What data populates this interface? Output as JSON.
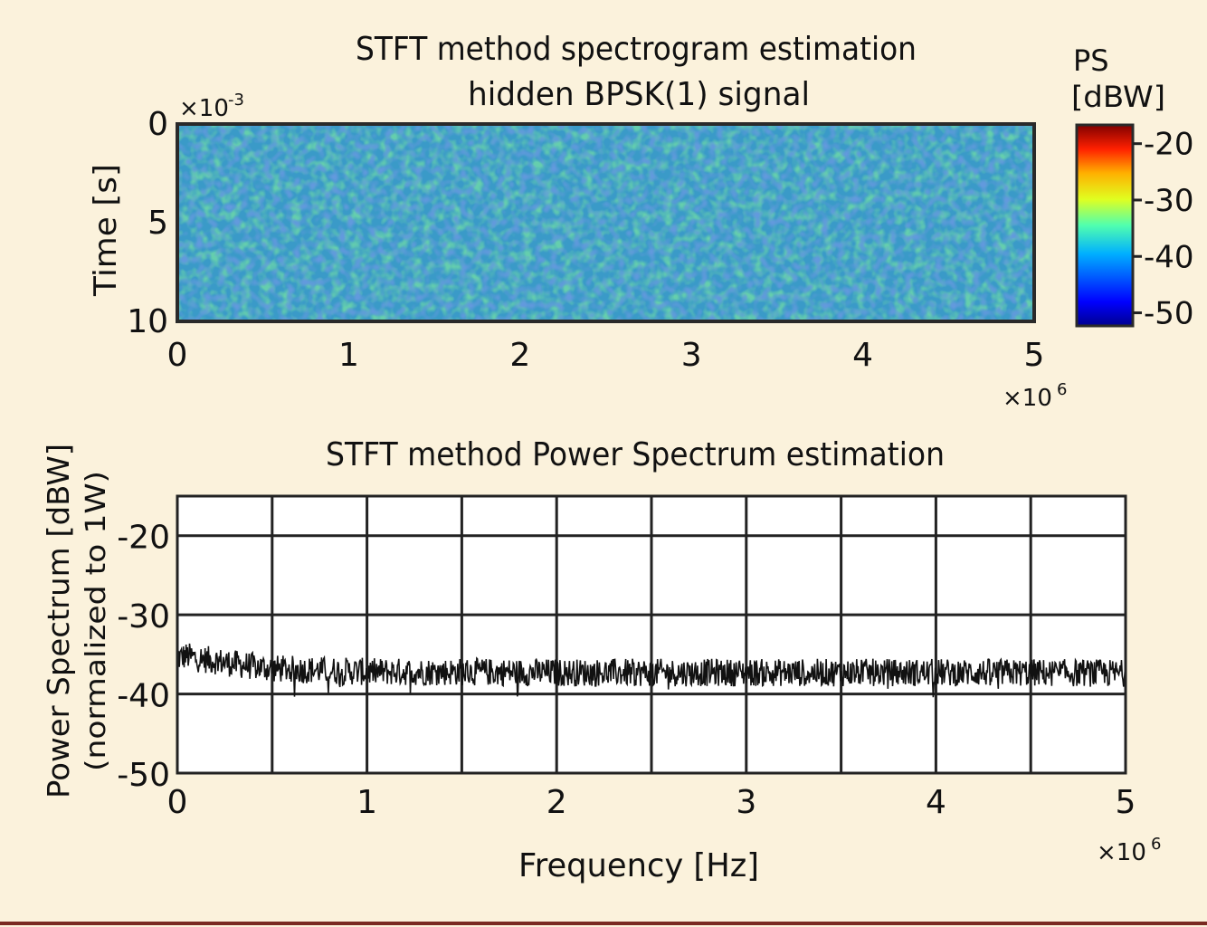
{
  "colors": {
    "background": "#fbf2dc",
    "spectrogram_base": "#3a9ac8",
    "spectrum_line": "#111111",
    "grid": "#222222",
    "panel": "#ffffff"
  },
  "chart_data": [
    {
      "type": "heatmap",
      "title": "STFT method spectrogram estimation",
      "subtitle": "hidden BPSK(1) signal",
      "xlabel": "",
      "ylabel": "Time [s]",
      "xlim": [
        0,
        5
      ],
      "ylim": [
        0,
        10
      ],
      "x_multiplier": "×10",
      "x_multiplier_exp": "6",
      "y_multiplier": "×10",
      "y_multiplier_exp": "-3",
      "xticks": [
        "0",
        "1",
        "2",
        "3",
        "4",
        "5"
      ],
      "yticks": [
        "0",
        "5",
        "10"
      ],
      "colorbar": {
        "title": "PS",
        "unit": "[dBW]",
        "ticks": [
          "-20",
          "-30",
          "-40",
          "-50"
        ],
        "range": [
          -52,
          -17
        ],
        "colormap": "jet"
      },
      "value_range_dBW": [
        -45,
        -35
      ],
      "typical_value_dBW": -40
    },
    {
      "type": "line",
      "title": "STFT method Power Spectrum estimation",
      "xlabel": "Frequency [Hz]",
      "ylabel": "Power Spectrum [dBW]",
      "ylabel2": "(normalized to 1W)",
      "xlim": [
        0,
        5
      ],
      "ylim": [
        -50,
        -15
      ],
      "x_multiplier": "×10",
      "x_multiplier_exp": "6",
      "xticks": [
        "0",
        "1",
        "2",
        "3",
        "4",
        "5"
      ],
      "yticks": [
        "-20",
        "-30",
        "-40",
        "-50"
      ],
      "grid": true,
      "x_gridlines": [
        0.5,
        1,
        1.5,
        2,
        2.5,
        3,
        3.5,
        4,
        4.5
      ],
      "y_gridlines": [
        -20,
        -30,
        -40
      ],
      "series": [
        {
          "x": [
            0,
            0.05,
            0.1,
            0.2,
            0.3,
            0.4,
            0.5,
            0.75,
            1,
            1.5,
            2,
            2.5,
            3,
            3.5,
            4,
            4.5,
            5
          ],
          "y": [
            -35.5,
            -35.2,
            -35.5,
            -35.8,
            -36.2,
            -36.5,
            -36.8,
            -37.0,
            -37.2,
            -37.2,
            -37.3,
            -37.3,
            -37.3,
            -37.3,
            -37.3,
            -37.3,
            -37.4
          ],
          "noise_band_dB": 2.5
        }
      ]
    }
  ]
}
